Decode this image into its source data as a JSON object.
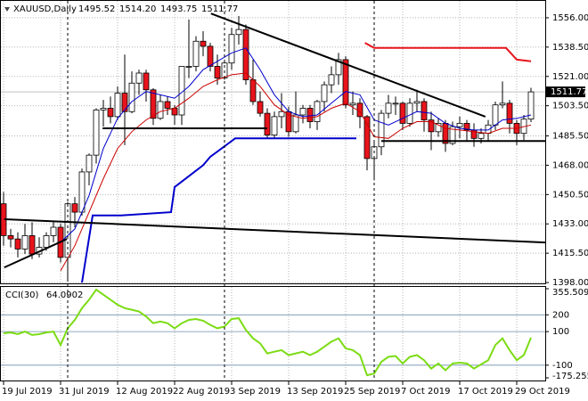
{
  "chart_data": {
    "type": "candlestick",
    "title": "XAUUSD,Daily",
    "quote_labels": [
      "1495.52",
      "1514.20",
      "1493.75",
      "1511.77"
    ],
    "categories": [
      "19 Jul 2019",
      null,
      null,
      null,
      null,
      null,
      null,
      null,
      "31 Jul 2019",
      null,
      null,
      null,
      null,
      null,
      null,
      null,
      "12 Aug 2019",
      null,
      null,
      null,
      null,
      null,
      null,
      null,
      "22 Aug 2019",
      null,
      null,
      null,
      null,
      null,
      null,
      null,
      "3 Sep 2019",
      null,
      null,
      null,
      null,
      null,
      null,
      null,
      "13 Sep 2019",
      null,
      null,
      null,
      null,
      null,
      null,
      null,
      "25 Sep 2019",
      null,
      null,
      null,
      null,
      null,
      null,
      null,
      "7 Oct 2019",
      null,
      null,
      null,
      null,
      null,
      null,
      null,
      "17 Oct 2019",
      null,
      null,
      null,
      null,
      null,
      null,
      null,
      "29 Oct 2019",
      null,
      null
    ],
    "open": [
      1445,
      1426,
      1424,
      1418,
      1426,
      1415,
      1419,
      1426,
      1431,
      1413,
      1445,
      1440,
      1464,
      1474,
      1501,
      1502,
      1497,
      1511,
      1500,
      1517,
      1523,
      1513,
      1496,
      1506,
      1502,
      1498,
      1527,
      1527,
      1542,
      1539,
      1527,
      1520,
      1529,
      1546,
      1549,
      1519,
      1506,
      1499,
      1486,
      1497,
      1500,
      1488,
      1498,
      1502,
      1494,
      1506,
      1516,
      1522,
      1531,
      1504,
      1505,
      1497,
      1472,
      1479,
      1499,
      1505,
      1505,
      1493,
      1505,
      1506,
      1495,
      1488,
      1493,
      1481,
      1491,
      1493,
      1489,
      1484,
      1487,
      1492,
      1504,
      1505,
      1493,
      1487,
      1495.52
    ],
    "high": [
      1452,
      1430,
      1428,
      1433,
      1434,
      1425,
      1428,
      1435,
      1433,
      1446,
      1449,
      1466,
      1475,
      1502,
      1507,
      1509,
      1515,
      1534,
      1524,
      1525,
      1525,
      1514,
      1510,
      1509,
      1504,
      1527,
      1555,
      1545,
      1548,
      1541,
      1534,
      1530,
      1550,
      1557,
      1552,
      1531,
      1512,
      1502,
      1500,
      1511,
      1503,
      1512,
      1504,
      1504,
      1507,
      1518,
      1527,
      1535,
      1533,
      1512,
      1508,
      1498,
      1483,
      1501,
      1510,
      1509,
      1506,
      1508,
      1513,
      1508,
      1500,
      1496,
      1495,
      1494,
      1497,
      1495,
      1493,
      1490,
      1495,
      1506,
      1518,
      1507,
      1495,
      1498,
      1514.2
    ],
    "low": [
      1420,
      1419,
      1413,
      1415,
      1412,
      1413,
      1417,
      1422,
      1410,
      1400,
      1431,
      1438,
      1456,
      1469,
      1491,
      1493,
      1495,
      1480,
      1499,
      1510,
      1506,
      1492,
      1495,
      1498,
      1492,
      1492,
      1520,
      1524,
      1533,
      1524,
      1516,
      1519,
      1525,
      1540,
      1516,
      1504,
      1497,
      1484,
      1484,
      1490,
      1485,
      1487,
      1493,
      1490,
      1489,
      1500,
      1511,
      1516,
      1502,
      1498,
      1490,
      1465,
      1459,
      1474,
      1496,
      1498,
      1489,
      1491,
      1500,
      1488,
      1477,
      1485,
      1476,
      1480,
      1484,
      1482,
      1479,
      1481,
      1482,
      1489,
      1502,
      1487,
      1480,
      1483,
      1493.75
    ],
    "close": [
      1426,
      1424,
      1418,
      1426,
      1415,
      1419,
      1426,
      1431,
      1413,
      1445,
      1440,
      1464,
      1474,
      1501,
      1502,
      1497,
      1511,
      1500,
      1517,
      1523,
      1513,
      1496,
      1506,
      1502,
      1498,
      1527,
      1527,
      1542,
      1539,
      1527,
      1520,
      1529,
      1546,
      1549,
      1519,
      1506,
      1499,
      1486,
      1497,
      1500,
      1488,
      1498,
      1502,
      1494,
      1506,
      1516,
      1522,
      1531,
      1504,
      1505,
      1497,
      1472,
      1479,
      1499,
      1505,
      1505,
      1493,
      1505,
      1506,
      1495,
      1488,
      1493,
      1481,
      1491,
      1493,
      1489,
      1484,
      1487,
      1492,
      1504,
      1505,
      1493,
      1487,
      1495.52,
      1511.77
    ],
    "up_color": "#ffffff",
    "down_color": "#e8141c",
    "outline_color": "#000000",
    "ylim": [
      1397.5,
      1566.6
    ],
    "yticks": [
      {
        "value": 1556,
        "label": "1556.00"
      },
      {
        "value": 1538.5,
        "label": "1538.50"
      },
      {
        "value": 1521,
        "label": "1521.00"
      },
      {
        "value": 1503.5,
        "label": "1503.50"
      },
      {
        "value": 1485.5,
        "label": "1485.50"
      },
      {
        "value": 1468,
        "label": "1468.00"
      },
      {
        "value": 1450.5,
        "label": "1450.50"
      },
      {
        "value": 1433,
        "label": "1433.00"
      },
      {
        "value": 1415.5,
        "label": "1415.50"
      },
      {
        "value": 1398,
        "label": "1398.00"
      }
    ],
    "last_price": 1511.77,
    "grid": true,
    "lines": [
      {
        "color": "#0000cc",
        "width": 1,
        "x": [
          8,
          10,
          12,
          14,
          16,
          18,
          20,
          22,
          24,
          26,
          28,
          30,
          32,
          34,
          36,
          38,
          40,
          42,
          44,
          46,
          48,
          50,
          52,
          54,
          56,
          58,
          60,
          62,
          64,
          66,
          68,
          70,
          72,
          74
        ],
        "values": [
          1422,
          1430,
          1450,
          1478,
          1496,
          1506,
          1512,
          1510,
          1508,
          1515,
          1525,
          1530,
          1535,
          1538,
          1525,
          1510,
          1500,
          1497,
          1498,
          1505,
          1512,
          1510,
          1495,
          1492,
          1496,
          1500,
          1499,
          1493,
          1490,
          1489,
          1489,
          1495,
          1496,
          1498
        ]
      },
      {
        "color": "#cc0000",
        "width": 1,
        "x": [
          8,
          10,
          12,
          14,
          16,
          18,
          20,
          22,
          24,
          26,
          28,
          30,
          32,
          34,
          36,
          38,
          40,
          42,
          44,
          46,
          48,
          50,
          52,
          54,
          56,
          58,
          60,
          62,
          64,
          66,
          68,
          70,
          72,
          74
        ],
        "values": [
          1405,
          1420,
          1440,
          1460,
          1478,
          1488,
          1495,
          1500,
          1502,
          1508,
          1515,
          1519,
          1522,
          1523,
          1515,
          1504,
          1498,
          1496,
          1497,
          1502,
          1505,
          1500,
          1485,
          1484,
          1490,
          1494,
          1494,
          1490,
          1489,
          1488,
          1487,
          1490,
          1490,
          1492
        ]
      },
      {
        "color": "#0000cc",
        "width": 2,
        "x": [
          11,
          12.5,
          16.5,
          23.5,
          24,
          28,
          29,
          32.5,
          49.5
        ],
        "values": [
          1398,
          1438,
          1438,
          1440,
          1455,
          1468,
          1473,
          1484,
          1484
        ]
      },
      {
        "color": "#e8141c",
        "width": 2,
        "x": [
          50.7,
          52,
          70.5,
          72,
          74
        ],
        "values": [
          1541,
          1538,
          1538,
          1531,
          1530
        ]
      },
      {
        "color": "#000000",
        "width": 2,
        "x": [
          29.1,
          67.6
        ],
        "values": [
          1558.5,
          1497
        ]
      },
      {
        "color": "#000000",
        "width": 2,
        "x": [
          13.9,
          37
        ],
        "values": [
          1490,
          1490
        ]
      },
      {
        "color": "#000000",
        "width": 2,
        "x": [
          53,
          76
        ],
        "values": [
          1482.5,
          1482.5
        ]
      },
      {
        "color": "#000000",
        "width": 2,
        "x": [
          0.1,
          76
        ],
        "values": [
          1435.8,
          1421.9
        ]
      },
      {
        "color": "#000000",
        "width": 2,
        "x": [
          0.1,
          8.9
        ],
        "values": [
          1407,
          1424
        ]
      }
    ],
    "cci": {
      "title": "CCI(30)",
      "color": "#7cdc14",
      "level_color": "#6f8faf",
      "ylim": [
        -175.2554,
        355.5093
      ],
      "yticks": [
        355.5093,
        200,
        100,
        -100,
        -175.2554
      ],
      "values": [
        90,
        95,
        85,
        100,
        80,
        85,
        95,
        100,
        20,
        120,
        170,
        240,
        290,
        350,
        320,
        290,
        260,
        240,
        230,
        220,
        190,
        150,
        160,
        150,
        120,
        150,
        170,
        175,
        165,
        140,
        120,
        130,
        175,
        180,
        110,
        60,
        30,
        -30,
        -20,
        -10,
        -40,
        -30,
        -20,
        -40,
        -20,
        10,
        40,
        60,
        0,
        -10,
        -40,
        -160,
        -150,
        -80,
        -50,
        -45,
        -90,
        -50,
        -40,
        -70,
        -120,
        -90,
        -130,
        -90,
        -85,
        -90,
        -120,
        -95,
        -70,
        20,
        60,
        -10,
        -70,
        -40,
        64.0902
      ]
    }
  }
}
